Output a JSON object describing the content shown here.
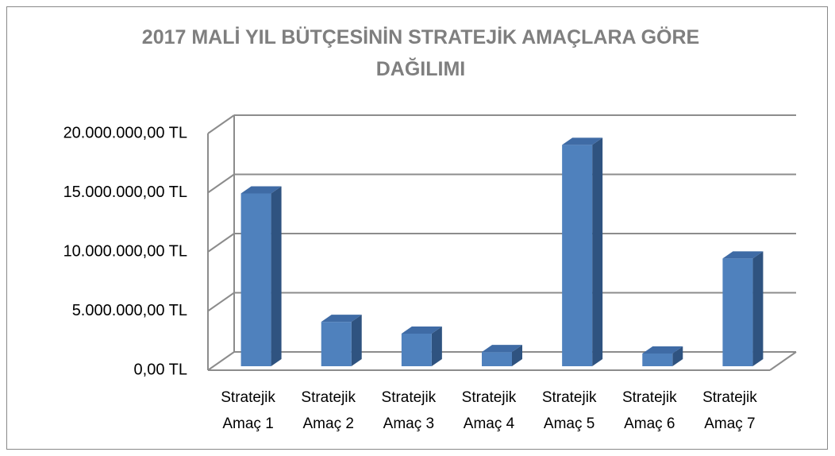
{
  "chart_data": {
    "type": "bar3d",
    "title": "2017 MALİ YIL BÜTÇESİNİN STRATEJİK AMAÇLARA GÖRE DAĞILIMI",
    "categories": [
      "Stratejik Amaç 1",
      "Stratejik Amaç 2",
      "Stratejik Amaç 3",
      "Stratejik Amaç 4",
      "Stratejik Amaç 5",
      "Stratejik Amaç 6",
      "Stratejik Amaç 7"
    ],
    "values": [
      14600000,
      3750000,
      2750000,
      1200000,
      18700000,
      1070000,
      9100000
    ],
    "color": "#4f81bd",
    "ylim": [
      0,
      20000000
    ],
    "yticks": [
      {
        "value": 0,
        "label": "0,00 TL"
      },
      {
        "value": 5000000,
        "label": "5.000.000,00 TL"
      },
      {
        "value": 10000000,
        "label": "10.000.000,00 TL"
      },
      {
        "value": 15000000,
        "label": "15.000.000,00 TL"
      },
      {
        "value": 20000000,
        "label": "20.000.000,00 TL"
      }
    ],
    "grid": true
  }
}
